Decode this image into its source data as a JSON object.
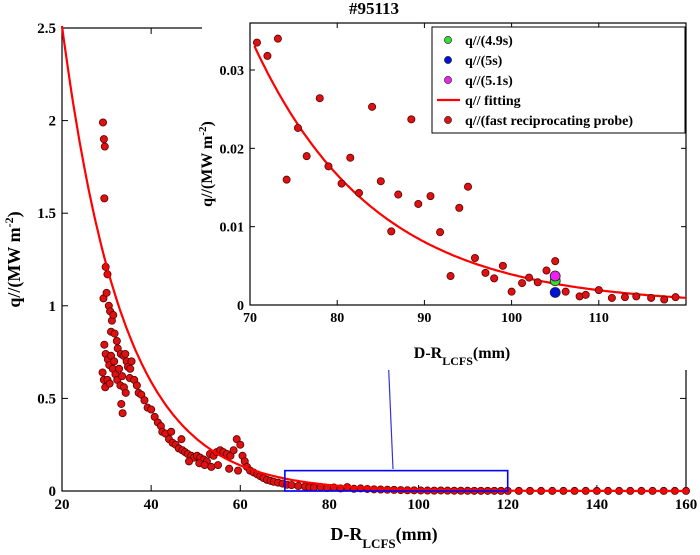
{
  "chart_data": [
    {
      "id": "main",
      "type": "scatter",
      "title": "#95113",
      "xlabel": "D-R",
      "xlabel_sub": "LCFS",
      "xlabel_unit": "(mm)",
      "ylabel": "q//(MW m",
      "ylabel_sup": "-2",
      "ylabel_end": ")",
      "xlim": [
        20,
        160
      ],
      "ylim": [
        0,
        2.5
      ],
      "xticks": [
        20,
        40,
        60,
        80,
        100,
        120,
        140,
        160
      ],
      "yticks": [
        0,
        0.5,
        1,
        1.5,
        2,
        2.5
      ],
      "ytick_labels": [
        "0",
        "0.5",
        "1",
        "1.5",
        "2",
        "2.5"
      ],
      "highlight_box": {
        "x": [
          70,
          120
        ],
        "y": [
          0,
          0.11
        ]
      },
      "colors": {
        "fit": "#ff0000",
        "probe": "#dd1111",
        "box": "#0000ff",
        "arrow": "#3333dd"
      },
      "series": [
        {
          "name": "q// fitting",
          "kind": "line",
          "fit": {
            "A": 10.7,
            "lambda": 13.8,
            "x0": 0,
            "x_range": [
              20,
              160
            ]
          }
        },
        {
          "name": "q//(fast reciprocating probe)",
          "kind": "scatter",
          "points": [
            [
              29.2,
              1.99
            ],
            [
              29.4,
              1.9
            ],
            [
              29.6,
              1.86
            ],
            [
              29.5,
              1.58
            ],
            [
              29.8,
              1.21
            ],
            [
              30.2,
              1.17
            ],
            [
              29.3,
              1.04
            ],
            [
              30.0,
              1.07
            ],
            [
              30.5,
              1.0
            ],
            [
              30.8,
              0.97
            ],
            [
              31.2,
              0.92
            ],
            [
              31.5,
              0.95
            ],
            [
              31.0,
              0.86
            ],
            [
              31.8,
              0.85
            ],
            [
              32.3,
              0.81
            ],
            [
              32.5,
              0.77
            ],
            [
              33.2,
              0.74
            ],
            [
              33.8,
              0.73
            ],
            [
              34.2,
              0.74
            ],
            [
              34.5,
              0.7
            ],
            [
              34.8,
              0.67
            ],
            [
              35.3,
              0.66
            ],
            [
              35.6,
              0.7
            ],
            [
              35.2,
              0.61
            ],
            [
              36.2,
              0.6
            ],
            [
              36.8,
              0.57
            ],
            [
              37.2,
              0.53
            ],
            [
              37.8,
              0.52
            ],
            [
              38.5,
              0.49
            ],
            [
              39.2,
              0.45
            ],
            [
              29.5,
              0.79
            ],
            [
              29.8,
              0.74
            ],
            [
              30.3,
              0.71
            ],
            [
              30.6,
              0.68
            ],
            [
              31.0,
              0.73
            ],
            [
              31.4,
              0.66
            ],
            [
              31.7,
              0.7
            ],
            [
              32.0,
              0.63
            ],
            [
              32.4,
              0.6
            ],
            [
              32.8,
              0.66
            ],
            [
              33.1,
              0.57
            ],
            [
              33.5,
              0.62
            ],
            [
              33.9,
              0.56
            ],
            [
              34.3,
              0.53
            ],
            [
              29.1,
              0.64
            ],
            [
              29.4,
              0.6
            ],
            [
              29.7,
              0.56
            ],
            [
              30.2,
              0.6
            ],
            [
              30.7,
              0.58
            ],
            [
              33.3,
              0.47
            ],
            [
              33.6,
              0.42
            ],
            [
              40.0,
              0.44
            ],
            [
              40.8,
              0.4
            ],
            [
              41.5,
              0.37
            ],
            [
              42.2,
              0.35
            ],
            [
              42.5,
              0.32
            ],
            [
              43.2,
              0.31
            ],
            [
              44.0,
              0.28
            ],
            [
              44.8,
              0.26
            ],
            [
              45.5,
              0.25
            ],
            [
              46.2,
              0.23
            ],
            [
              47.0,
              0.22
            ],
            [
              47.6,
              0.21
            ],
            [
              48.2,
              0.2
            ],
            [
              49.0,
              0.19
            ],
            [
              49.6,
              0.18
            ],
            [
              50.3,
              0.19
            ],
            [
              51.0,
              0.18
            ],
            [
              51.8,
              0.17
            ],
            [
              52.5,
              0.16
            ],
            [
              53.2,
              0.2
            ],
            [
              54.0,
              0.19
            ],
            [
              54.7,
              0.21
            ],
            [
              55.5,
              0.22
            ],
            [
              56.2,
              0.21
            ],
            [
              57.0,
              0.2
            ],
            [
              57.8,
              0.19
            ],
            [
              58.5,
              0.22
            ],
            [
              59.2,
              0.28
            ],
            [
              60.0,
              0.25
            ],
            [
              60.5,
              0.19
            ],
            [
              61.0,
              0.16
            ],
            [
              61.5,
              0.13
            ],
            [
              62.2,
              0.11
            ],
            [
              63.0,
              0.1
            ],
            [
              63.8,
              0.09
            ],
            [
              64.5,
              0.08
            ],
            [
              65.2,
              0.07
            ],
            [
              66.0,
              0.06
            ],
            [
              66.8,
              0.055
            ],
            [
              67.5,
              0.05
            ],
            [
              68.5,
              0.045
            ],
            [
              69.5,
              0.04
            ],
            [
              44.5,
              0.32
            ],
            [
              46.8,
              0.28
            ],
            [
              48.5,
              0.16
            ],
            [
              50.8,
              0.15
            ],
            [
              52.0,
              0.14
            ],
            [
              53.5,
              0.13
            ],
            [
              55.0,
              0.14
            ],
            [
              57.5,
              0.12
            ],
            [
              59.5,
              0.11
            ],
            [
              70.5,
              0.034
            ],
            [
              71.5,
              0.032
            ],
            [
              73,
              0.027
            ],
            [
              74.5,
              0.024
            ],
            [
              75.5,
              0.02
            ],
            [
              76.5,
              0.018
            ],
            [
              78,
              0.022
            ],
            [
              79.5,
              0.016
            ],
            [
              81,
              0.019
            ],
            [
              82.5,
              0.014
            ],
            [
              84,
              0.021
            ],
            [
              85.5,
              0.012
            ],
            [
              87,
              0.014
            ],
            [
              88.5,
              0.011
            ],
            [
              90,
              0.009
            ],
            [
              91.5,
              0.008
            ],
            [
              93,
              0.007
            ],
            [
              94.5,
              0.006
            ],
            [
              96,
              0.005
            ],
            [
              97.5,
              0.004
            ],
            [
              99,
              0.0035
            ],
            [
              100.5,
              0.003
            ],
            [
              102,
              0.0025
            ],
            [
              103.5,
              0.002
            ],
            [
              105,
              0.0028
            ],
            [
              106.5,
              0.0018
            ],
            [
              108,
              0.0015
            ],
            [
              109.5,
              0.0013
            ],
            [
              111,
              0.0012
            ],
            [
              112.5,
              0.001
            ],
            [
              114,
              0.0009
            ],
            [
              115.5,
              0.0008
            ],
            [
              117,
              0.0008
            ],
            [
              118.5,
              0.0007
            ],
            [
              120,
              0.0007
            ],
            [
              122.5,
              0.0006
            ],
            [
              125,
              0.0006
            ],
            [
              127.5,
              0.0005
            ],
            [
              130,
              0.0005
            ],
            [
              132.5,
              0.0005
            ],
            [
              135,
              0.0005
            ],
            [
              137.5,
              0.0004
            ],
            [
              140,
              0.0004
            ],
            [
              142.5,
              0.0004
            ],
            [
              145,
              0.0004
            ],
            [
              147.5,
              0.0004
            ],
            [
              150,
              0.0004
            ],
            [
              152.5,
              0.0004
            ],
            [
              155,
              0.0004
            ],
            [
              157.5,
              0.0004
            ],
            [
              160,
              0.0004
            ]
          ]
        }
      ]
    },
    {
      "id": "inset",
      "type": "scatter",
      "xlabel": "D-R",
      "xlabel_sub": "LCFS",
      "xlabel_unit": "(mm)",
      "ylabel": "q//(MW m",
      "ylabel_sup": "-2",
      "ylabel_end": ")",
      "xlim": [
        70,
        120
      ],
      "ylim": [
        0,
        0.036
      ],
      "xticks": [
        70,
        80,
        90,
        100,
        110
      ],
      "yticks": [
        0,
        0.01,
        0.02,
        0.03
      ],
      "ytick_labels": [
        "0",
        "0.01",
        "0.02",
        "0.03"
      ],
      "legend": {
        "position": "top-right",
        "entries": [
          {
            "label": "q//(4.9s)",
            "marker": "dot",
            "color": "#33dd33"
          },
          {
            "label": "q//(5s)",
            "marker": "dot",
            "color": "#0011dd"
          },
          {
            "label": "q//(5.1s)",
            "marker": "dot",
            "color": "#ee22ee"
          },
          {
            "label": "q// fitting",
            "marker": "line",
            "color": "#ff0000"
          },
          {
            "label": "q//(fast reciprocating probe)",
            "marker": "dot",
            "color": "#dd1111"
          }
        ]
      },
      "series": [
        {
          "name": "q// fitting",
          "kind": "line",
          "fit": {
            "A": 0.0343,
            "lambda": 13.8,
            "x0": 70,
            "x_range": [
              70.5,
              120
            ]
          }
        },
        {
          "name": "q//(fast reciprocating probe)",
          "kind": "scatter",
          "points": [
            [
              70.8,
              0.0335
            ],
            [
              72.0,
              0.0318
            ],
            [
              73.2,
              0.034
            ],
            [
              74.2,
              0.016
            ],
            [
              75.5,
              0.0226
            ],
            [
              76.5,
              0.019
            ],
            [
              78.0,
              0.0264
            ],
            [
              79.0,
              0.0177
            ],
            [
              80.5,
              0.0155
            ],
            [
              81.5,
              0.0188
            ],
            [
              82.5,
              0.0143
            ],
            [
              84.0,
              0.0253
            ],
            [
              85.0,
              0.0158
            ],
            [
              86.2,
              0.0094
            ],
            [
              87.0,
              0.0141
            ],
            [
              88.5,
              0.0237
            ],
            [
              89.3,
              0.0129
            ],
            [
              90.7,
              0.0139
            ],
            [
              91.8,
              0.0093
            ],
            [
              93.0,
              0.0037
            ],
            [
              94.0,
              0.0124
            ],
            [
              95.0,
              0.0151
            ],
            [
              95.8,
              0.006
            ],
            [
              97.0,
              0.0041
            ],
            [
              98.0,
              0.0034
            ],
            [
              99.0,
              0.005
            ],
            [
              100.0,
              0.0017
            ],
            [
              101.2,
              0.0028
            ],
            [
              102.0,
              0.0035
            ],
            [
              103.0,
              0.0029
            ],
            [
              104.0,
              0.0044
            ],
            [
              105.0,
              0.0056
            ],
            [
              106.2,
              0.0017
            ],
            [
              107.8,
              0.0011
            ],
            [
              108.5,
              0.0013
            ],
            [
              110.0,
              0.0019
            ],
            [
              111.5,
              0.0009
            ],
            [
              113.0,
              0.001
            ],
            [
              114.3,
              0.0011
            ],
            [
              116.0,
              0.0009
            ],
            [
              117.5,
              0.0007
            ],
            [
              118.8,
              0.001
            ]
          ]
        },
        {
          "name": "q//(4.9s)",
          "kind": "scatter",
          "points": [
            [
              105,
              0.0031
            ]
          ]
        },
        {
          "name": "q//(5s)",
          "kind": "scatter",
          "points": [
            [
              105,
              0.0016
            ]
          ]
        },
        {
          "name": "q//(5.1s)",
          "kind": "scatter",
          "points": [
            [
              105,
              0.0037
            ]
          ]
        }
      ]
    }
  ]
}
